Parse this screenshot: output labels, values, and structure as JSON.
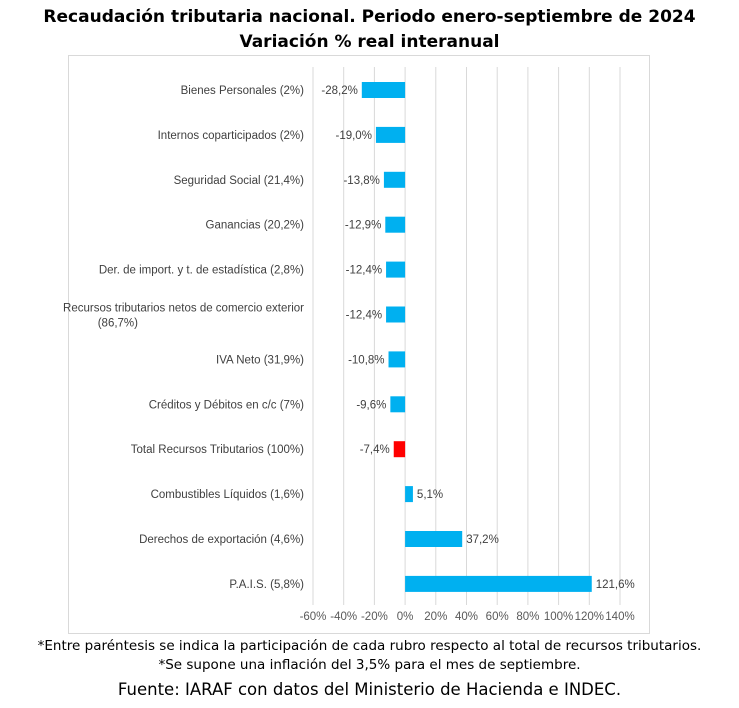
{
  "chart_data": {
    "type": "bar",
    "orientation": "horizontal",
    "title": "Recaudación tributaria nacional. Periodo enero-septiembre de 2024",
    "subtitle": "Variación % real interanual",
    "categories": [
      "Bienes Personales (2%)",
      "Internos coparticipados (2%)",
      "Seguridad Social (21,4%)",
      "Ganancias (20,2%)",
      "Der. de import. y t. de estadística (2,8%)",
      "Recursos tributarios netos de comercio exterior (86,7%)",
      "IVA Neto (31,9%)",
      "Créditos y Débitos en c/c (7%)",
      "Total Recursos Tributarios (100%)",
      "Combustibles Líquidos (1,6%)",
      "Derechos de exportación (4,6%)",
      "P.A.I.S. (5,8%)"
    ],
    "values": [
      -28.2,
      -19.0,
      -13.8,
      -12.9,
      -12.4,
      -12.4,
      -10.8,
      -9.6,
      -7.4,
      5.1,
      37.2,
      121.6
    ],
    "data_labels": [
      "-28,2%",
      "-19,0%",
      "-13,8%",
      "-12,9%",
      "-12,4%",
      "-12,4%",
      "-10,8%",
      "-9,6%",
      "-7,4%",
      "5,1%",
      "37,2%",
      "121,6%"
    ],
    "highlight_index": 8,
    "xlim": [
      -60,
      140
    ],
    "xticks": [
      -60,
      -40,
      -20,
      0,
      20,
      40,
      60,
      80,
      100,
      120,
      140
    ],
    "xtick_labels": [
      "-60%",
      "-40%",
      "-20%",
      "0%",
      "20%",
      "40%",
      "60%",
      "80%",
      "100%",
      "120%",
      "140%"
    ],
    "grid": true,
    "colors": {
      "bar": "#00b0f0",
      "highlight": "#ff0000",
      "grid": "#d9d9d9"
    }
  },
  "notes": {
    "n1": "*Entre paréntesis se indica la participación de cada rubro respecto al total de recursos tributarios.",
    "n2": "*Se supone una inflación del 3,5% para el mes de septiembre."
  },
  "source": "Fuente: IARAF con datos del Ministerio de Hacienda e INDEC."
}
